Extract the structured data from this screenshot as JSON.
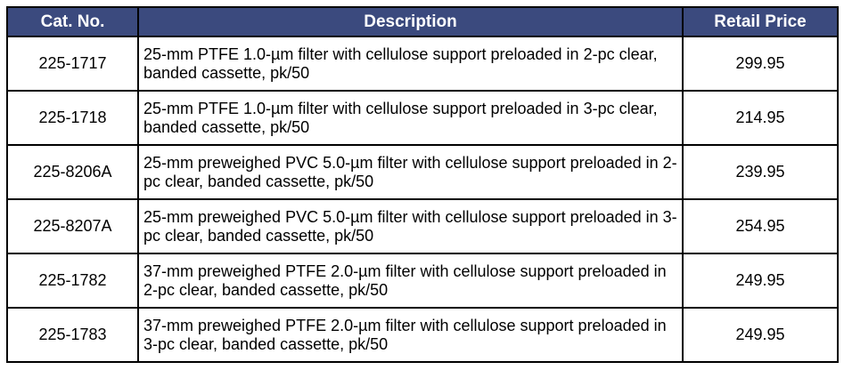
{
  "headers": [
    "Cat. No.",
    "Description",
    "Retail Price"
  ],
  "header_color": "#3b4a7e",
  "rows": [
    {
      "cat": "225-1717",
      "desc": "25-mm PTFE 1.0-µm filter with cellulose support preloaded in 2-pc clear, banded cassette, pk/50",
      "price": "299.95"
    },
    {
      "cat": "225-1718",
      "desc": "25-mm PTFE 1.0-µm filter with cellulose support preloaded in 3-pc clear, banded cassette, pk/50",
      "price": "214.95"
    },
    {
      "cat": "225-8206A",
      "desc": "25-mm preweighed PVC 5.0-µm filter with cellulose support preloaded in 2-pc clear, banded cassette, pk/50",
      "price": "239.95"
    },
    {
      "cat": "225-8207A",
      "desc": "25-mm preweighed PVC 5.0-µm filter with cellulose support preloaded in 3-pc clear, banded cassette, pk/50",
      "price": "254.95"
    },
    {
      "cat": "225-1782",
      "desc": "37-mm preweighed PTFE 2.0-µm filter with cellulose support preloaded in 2-pc clear, banded cassette, pk/50",
      "price": "249.95"
    },
    {
      "cat": "225-1783",
      "desc": "37-mm preweighed PTFE 2.0-µm filter with cellulose support preloaded in 3-pc clear, banded cassette, pk/50",
      "price": "249.95"
    }
  ]
}
